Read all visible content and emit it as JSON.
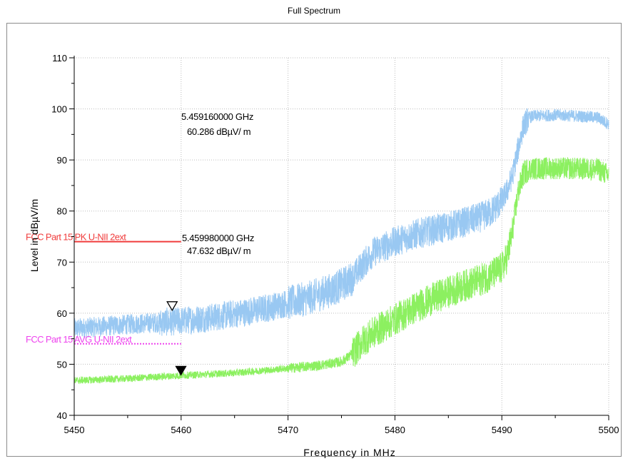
{
  "chart_data": {
    "type": "line",
    "title": "Full Spectrum",
    "xlabel": "Frequency in MHz",
    "ylabel": "Level in dBµV/m",
    "xlim": [
      5450,
      5500
    ],
    "ylim": [
      40,
      110
    ],
    "x_ticks": [
      5450,
      5460,
      5470,
      5480,
      5490,
      5500
    ],
    "y_ticks": [
      40,
      50,
      60,
      70,
      80,
      90,
      100,
      110
    ],
    "grid": true,
    "colors": {
      "peak": "#99c8f2",
      "avg": "#8cf060",
      "pk_limit": "#f03c3c",
      "avg_limit": "#ee44ee"
    },
    "series": [
      {
        "key": "peak",
        "x": [
          5450,
          5452,
          5455,
          5458,
          5460,
          5463,
          5466,
          5468,
          5470,
          5472,
          5474,
          5475,
          5476,
          5477,
          5478,
          5480,
          5482,
          5484,
          5486,
          5488,
          5489,
          5490,
          5490.5,
          5491,
          5491.5,
          5492,
          5492.5,
          5493,
          5495,
          5497,
          5499,
          5500
        ],
        "y": [
          57,
          57.3,
          57.8,
          58.2,
          58.5,
          59.2,
          60.2,
          61,
          62,
          63,
          64.5,
          65.5,
          66.8,
          69.5,
          72,
          74,
          75.5,
          76.5,
          77.5,
          78.8,
          79.8,
          82,
          84,
          87,
          92,
          96.5,
          98.3,
          98.6,
          98.8,
          98.6,
          98.3,
          97
        ]
      },
      {
        "key": "avg",
        "x": [
          5450,
          5455,
          5460,
          5465,
          5470,
          5473,
          5475,
          5476,
          5477,
          5478,
          5480,
          5482,
          5484,
          5486,
          5488,
          5489,
          5490,
          5490.5,
          5491,
          5491.5,
          5492,
          5492.5,
          5493,
          5495,
          5497,
          5499,
          5500
        ],
        "y": [
          46.8,
          47.2,
          47.8,
          48.3,
          49.2,
          49.8,
          50.5,
          52,
          54.5,
          56.2,
          58.8,
          61.2,
          63.3,
          65,
          66.5,
          67.5,
          68.8,
          71,
          76,
          83.5,
          87.2,
          88.2,
          88.3,
          88.4,
          88.3,
          88.2,
          87
        ]
      }
    ],
    "limits": [
      {
        "label": "FCC Part 15  PK U-NII 2ext",
        "y": 74,
        "x_end": 5460,
        "style": "solid",
        "key": "pk_limit"
      },
      {
        "label": "FCC Part 15  AVG U-NII 2ext",
        "y": 54,
        "x_end": 5460,
        "style": "dotted",
        "key": "avg_limit"
      }
    ],
    "markers": [
      {
        "x": 5459.16,
        "y": 60.286,
        "freq_text": "5.459160000  GHz",
        "level_text": "60.286  dBµV/ m",
        "filled": false
      },
      {
        "x": 5459.98,
        "y": 47.632,
        "freq_text": "5.459980000  GHz",
        "level_text": "47.632  dBµV/ m",
        "filled": true
      }
    ]
  }
}
